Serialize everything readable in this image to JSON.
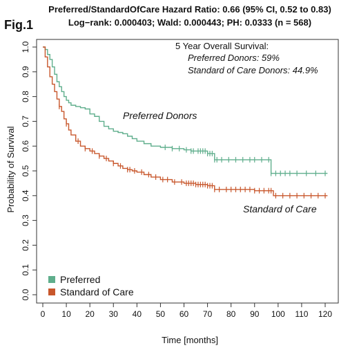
{
  "figure_label": "Fig.1",
  "title_line1": "Preferred/StandardOfCare Hazard Ratio: 0.66 (95% CI, 0.52 to 0.83)",
  "title_line2": "Log−rank: 0.000403; Wald: 0.000443; PH: 0.0333 (n = 568)",
  "annotation": {
    "heading": "5 Year Overall Survival:",
    "line1": "Preferred Donors: 59%",
    "line2": "Standard of Care Donors: 44.9%"
  },
  "curve_labels": {
    "preferred": "Preferred Donors",
    "standard": "Standard of Care"
  },
  "legend": {
    "preferred": "Preferred",
    "standard": "Standard of Care"
  },
  "colors": {
    "preferred": "#5fae8c",
    "standard": "#c8572c"
  },
  "chart_data": {
    "type": "line",
    "step": true,
    "xlabel": "Time [months]",
    "ylabel": "Probability of Survival",
    "xlim": [
      0,
      120
    ],
    "ylim": [
      0,
      1
    ],
    "xticks": [
      0,
      10,
      20,
      30,
      40,
      50,
      60,
      70,
      80,
      90,
      100,
      110,
      120
    ],
    "yticks": [
      0.0,
      0.1,
      0.2,
      0.3,
      0.4,
      0.5,
      0.6,
      0.7,
      0.8,
      0.9,
      1.0
    ],
    "grid": false,
    "legend_position": "bottom-left",
    "series": [
      {
        "name": "Preferred",
        "x": [
          0,
          1,
          2,
          3,
          4,
          5,
          6,
          7,
          8,
          9,
          10,
          11,
          12,
          14,
          16,
          18,
          20,
          22,
          24,
          26,
          28,
          30,
          32,
          34,
          36,
          38,
          40,
          43,
          46,
          50,
          55,
          60,
          63,
          70,
          73,
          80,
          90,
          97,
          98,
          121
        ],
        "y": [
          1.0,
          0.99,
          0.97,
          0.95,
          0.92,
          0.89,
          0.86,
          0.84,
          0.82,
          0.8,
          0.785,
          0.775,
          0.765,
          0.76,
          0.755,
          0.75,
          0.73,
          0.72,
          0.7,
          0.68,
          0.67,
          0.66,
          0.655,
          0.65,
          0.64,
          0.63,
          0.62,
          0.61,
          0.6,
          0.595,
          0.59,
          0.585,
          0.58,
          0.57,
          0.545,
          0.545,
          0.545,
          0.49,
          0.49,
          0.49
        ],
        "censor_x": [
          52,
          55,
          58,
          61,
          63,
          64,
          66,
          67,
          68,
          69,
          70,
          71,
          72,
          73,
          74,
          76,
          79,
          82,
          85,
          88,
          90,
          93,
          96,
          97,
          99,
          101,
          103,
          105,
          108,
          112,
          116,
          120
        ]
      },
      {
        "name": "Standard of Care",
        "x": [
          0,
          1,
          2,
          3,
          4,
          5,
          6,
          7,
          8,
          9,
          10,
          11,
          12,
          14,
          16,
          18,
          20,
          22,
          24,
          26,
          28,
          30,
          32,
          34,
          36,
          38,
          40,
          43,
          46,
          50,
          55,
          60,
          65,
          70,
          73,
          80,
          90,
          98,
          121
        ],
        "y": [
          1.0,
          0.96,
          0.92,
          0.88,
          0.85,
          0.82,
          0.79,
          0.76,
          0.74,
          0.71,
          0.69,
          0.665,
          0.645,
          0.62,
          0.6,
          0.59,
          0.58,
          0.57,
          0.56,
          0.55,
          0.54,
          0.53,
          0.52,
          0.51,
          0.505,
          0.5,
          0.495,
          0.485,
          0.475,
          0.465,
          0.455,
          0.45,
          0.445,
          0.44,
          0.425,
          0.425,
          0.42,
          0.4,
          0.4
        ],
        "censor_x": [
          7,
          10,
          15,
          18,
          21,
          24,
          27,
          30,
          33,
          36,
          37,
          39,
          42,
          45,
          48,
          51,
          53,
          56,
          59,
          61,
          62,
          63,
          64,
          65,
          66,
          67,
          68,
          69,
          70,
          71,
          72,
          73,
          75,
          78,
          80,
          82,
          84,
          86,
          88,
          90,
          92,
          94,
          96,
          97,
          99,
          102,
          105,
          108,
          111,
          114,
          117,
          120
        ]
      }
    ]
  }
}
